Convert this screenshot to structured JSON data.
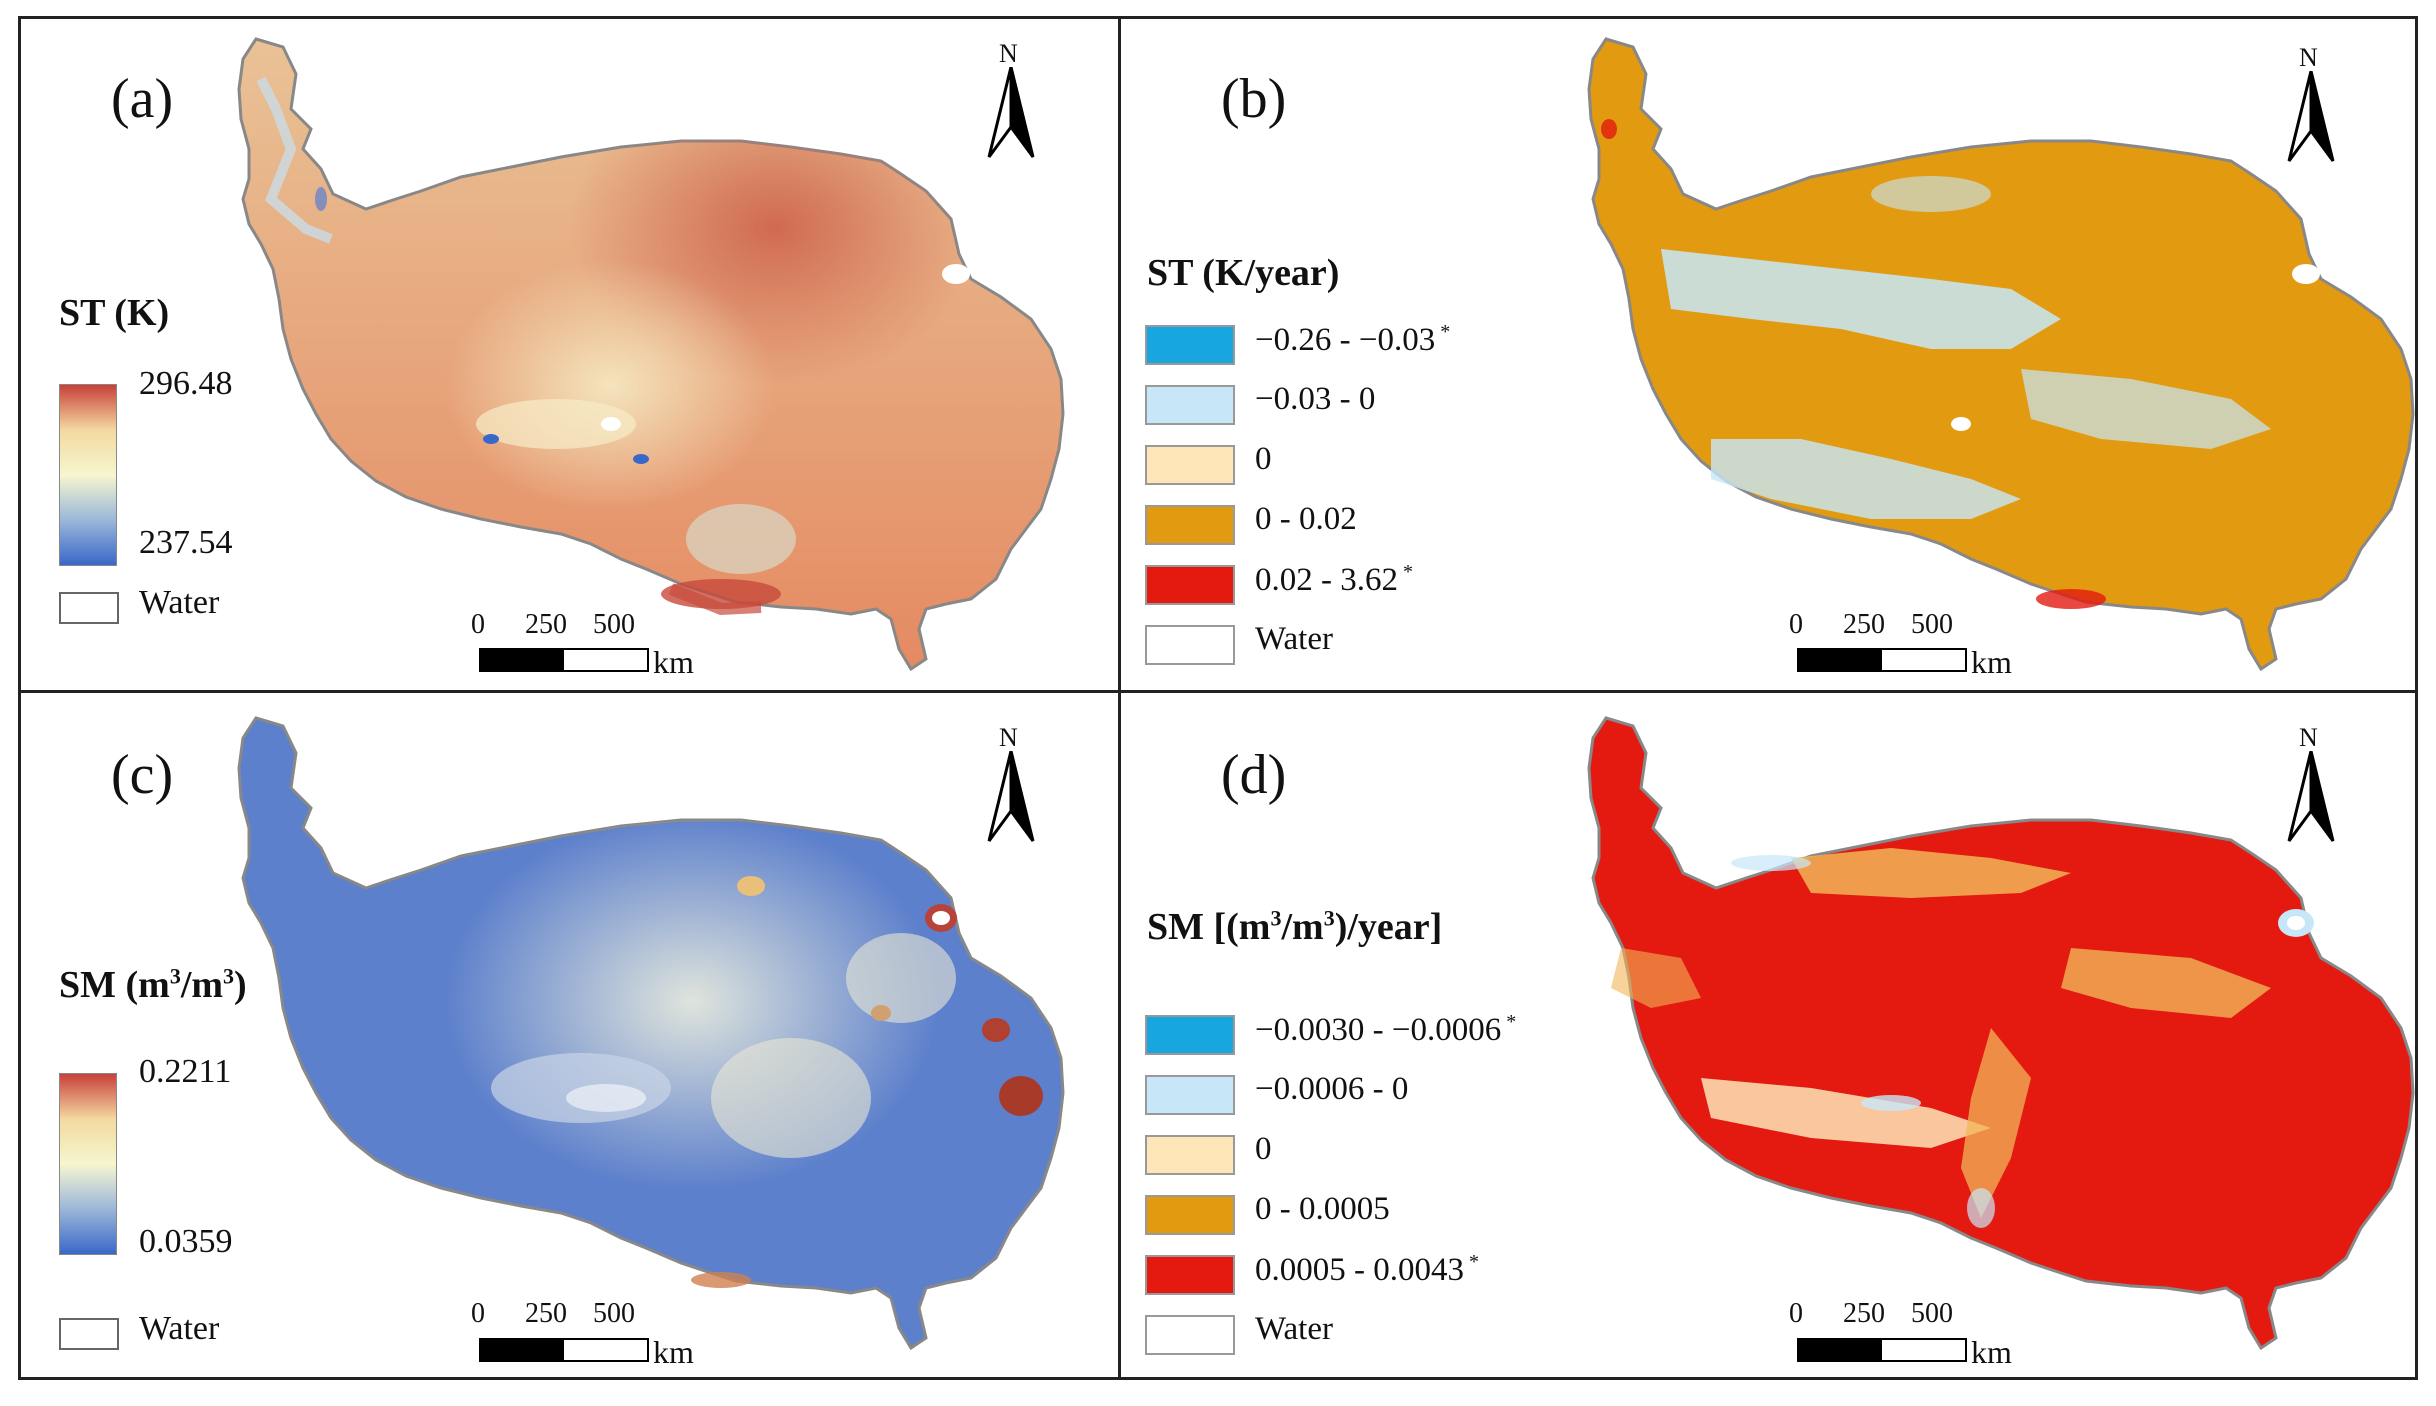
{
  "panels": {
    "a": {
      "label": "(a)",
      "legend_title": "ST (K)",
      "max": "296.48",
      "min": "237.54",
      "water": "Water",
      "ramp_colors": [
        "#c8403a",
        "#f3d9a0",
        "#f6f6cf",
        "#9bb7d9",
        "#3a68c8"
      ],
      "map_colors": {
        "base": "#f0b483",
        "hot": "#d06a50",
        "cold": "#b9d0dc",
        "edge": "#888888"
      }
    },
    "b": {
      "label": "(b)",
      "legend_title": "ST (K/year)",
      "classes": [
        {
          "label": "−0.26 - −0.03",
          "sig": "*",
          "color": "#18a6e0"
        },
        {
          "label": "−0.03 - 0",
          "sig": "",
          "color": "#c7e7f8"
        },
        {
          "label": "0",
          "sig": "",
          "color": "#fde5b7"
        },
        {
          "label": "0 - 0.02",
          "sig": "",
          "color": "#e29a10"
        },
        {
          "label": "0.02 - 3.62",
          "sig": "*",
          "color": "#e41a10"
        }
      ],
      "water": "Water",
      "map_colors": {
        "base": "#e29a10",
        "patch": "#c7e7f8",
        "edge": "#888888"
      }
    },
    "c": {
      "label": "(c)",
      "legend_title_prefix": "SM (m",
      "legend_title_mid": "/m",
      "legend_title_suffix": ")",
      "sup": "3",
      "max": "0.2211",
      "min": "0.0359",
      "water": "Water",
      "ramp_colors": [
        "#c8403a",
        "#f3d9a0",
        "#f6f6cf",
        "#9bb7d9",
        "#3a68c8"
      ],
      "map_colors": {
        "base": "#5a7fcf",
        "mid": "#b9c9e6",
        "wet": "#b04030",
        "edge": "#888888"
      }
    },
    "d": {
      "label": "(d)",
      "legend_title_prefix": "SM [(m",
      "legend_title_mid": "/m",
      "legend_title_suffix": ")/year]",
      "sup": "3",
      "classes": [
        {
          "label": "−0.0030 - −0.0006",
          "sig": "*",
          "color": "#18a6e0"
        },
        {
          "label": "−0.0006 - 0",
          "sig": "",
          "color": "#c7e7f8"
        },
        {
          "label": "0",
          "sig": "",
          "color": "#fde5b7"
        },
        {
          "label": "0 - 0.0005",
          "sig": "",
          "color": "#e29a10"
        },
        {
          "label": "0.0005 - 0.0043",
          "sig": "*",
          "color": "#e41a10"
        }
      ],
      "water": "Water",
      "map_colors": {
        "base": "#e41a10",
        "patch": "#f1b457",
        "edge": "#888888"
      }
    }
  },
  "scalebar": {
    "ticks": [
      "0",
      "250",
      "500"
    ],
    "unit": "km"
  },
  "north_label": "N"
}
